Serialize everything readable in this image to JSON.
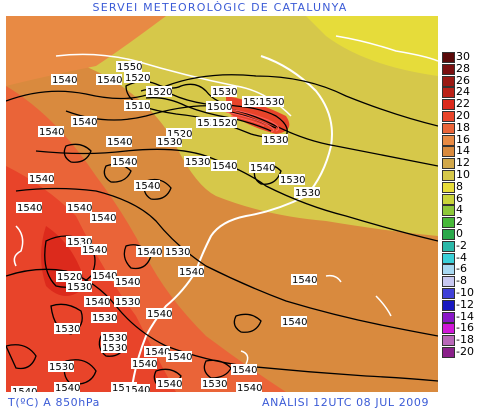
{
  "header": {
    "title": "SERVEI METEOROLÒGIC DE CATALUNYA"
  },
  "footer": {
    "variable": "T(ºC) A 850hPa",
    "analysis": "ANÀLISI 12UTC 08 JUL 2009"
  },
  "legend": {
    "items": [
      {
        "label": "30",
        "color": "#5a0a0a"
      },
      {
        "label": "28",
        "color": "#7a1010"
      },
      {
        "label": "26",
        "color": "#9a1a14"
      },
      {
        "label": "24",
        "color": "#bb2218"
      },
      {
        "label": "22",
        "color": "#dc2a1c"
      },
      {
        "label": "20",
        "color": "#e8442a"
      },
      {
        "label": "18",
        "color": "#ea6438"
      },
      {
        "label": "16",
        "color": "#e88a44"
      },
      {
        "label": "14",
        "color": "#d98a3e"
      },
      {
        "label": "12",
        "color": "#d2a84a"
      },
      {
        "label": "10",
        "color": "#d6c84a"
      },
      {
        "label": "8",
        "color": "#e6dc3a"
      },
      {
        "label": "6",
        "color": "#cad43a"
      },
      {
        "label": "4",
        "color": "#8ec83a"
      },
      {
        "label": "2",
        "color": "#48b83a"
      },
      {
        "label": "0",
        "color": "#2aa84a"
      },
      {
        "label": "-2",
        "color": "#2ab8a8"
      },
      {
        "label": "-4",
        "color": "#3ad0d8"
      },
      {
        "label": "-6",
        "color": "#a8d8f0"
      },
      {
        "label": "-8",
        "color": "#c8c8f0"
      },
      {
        "label": "-10",
        "color": "#4040d8"
      },
      {
        "label": "-12",
        "color": "#1818c0"
      },
      {
        "label": "-14",
        "color": "#8a18c8"
      },
      {
        "label": "-16",
        "color": "#d018d8"
      },
      {
        "label": "-18",
        "color": "#b868b8"
      },
      {
        "label": "-20",
        "color": "#8a208a"
      }
    ]
  },
  "contour_labels": [
    "1550",
    "1540",
    "1540",
    "1520",
    "1520",
    "1510",
    "1530",
    "1520",
    "1500",
    "1520",
    "1530",
    "1530",
    "1540",
    "1540",
    "1530",
    "1520",
    "1540",
    "1530",
    "1540",
    "1530",
    "1540",
    "1540",
    "1530",
    "1540",
    "1540",
    "1540",
    "1540",
    "1530",
    "1540",
    "1540",
    "1530",
    "1520",
    "1530",
    "1540",
    "1540",
    "1530",
    "1540",
    "1530",
    "1530",
    "1530",
    "1530",
    "1540",
    "1540",
    "1530",
    "1540",
    "1540",
    "1540",
    "1540",
    "1540",
    "1540",
    "1530",
    "1540",
    "1540",
    "1540",
    "1540",
    "1540",
    "1530",
    "1540",
    "1540"
  ]
}
